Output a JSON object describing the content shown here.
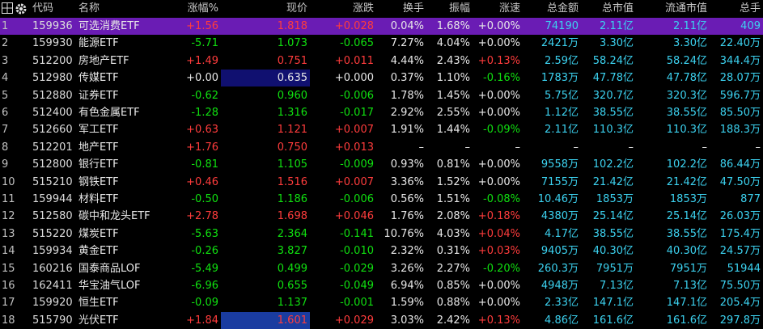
{
  "header": {
    "columns": [
      "代码",
      "名称",
      "涨幅%",
      "现价",
      "涨跌",
      "换手",
      "振幅",
      "涨速",
      "总金额",
      "总市值",
      "流通市值",
      "总手"
    ]
  },
  "table": {
    "rows": [
      [
        "1",
        "159936",
        "可选消费ETF",
        "+1.56",
        "1.818",
        "+0.028",
        "0.04%",
        "1.68%",
        "+0.00%",
        "74190",
        "2.11亿",
        "2.11亿",
        "409"
      ],
      [
        "2",
        "159930",
        "能源ETF",
        "-5.71",
        "1.073",
        "-0.065",
        "7.27%",
        "4.04%",
        "+0.00%",
        "2421万",
        "3.30亿",
        "3.30亿",
        "22.40万"
      ],
      [
        "3",
        "512200",
        "房地产ETF",
        "+1.49",
        "0.751",
        "+0.011",
        "4.44%",
        "2.43%",
        "+0.13%",
        "2.59亿",
        "58.24亿",
        "58.24亿",
        "344.4万"
      ],
      [
        "4",
        "512980",
        "传媒ETF",
        "+0.00",
        "0.635",
        "+0.000",
        "0.37%",
        "1.10%",
        "-0.16%",
        "1783万",
        "47.78亿",
        "47.78亿",
        "28.07万"
      ],
      [
        "5",
        "512880",
        "证券ETF",
        "-0.62",
        "0.960",
        "-0.006",
        "1.78%",
        "1.45%",
        "+0.00%",
        "5.75亿",
        "320.7亿",
        "320.3亿",
        "596.7万"
      ],
      [
        "6",
        "512400",
        "有色金属ETF",
        "-1.28",
        "1.316",
        "-0.017",
        "2.92%",
        "2.55%",
        "+0.00%",
        "1.12亿",
        "38.55亿",
        "38.55亿",
        "85.50万"
      ],
      [
        "7",
        "512660",
        "军工ETF",
        "+0.63",
        "1.121",
        "+0.007",
        "1.91%",
        "1.44%",
        "-0.09%",
        "2.11亿",
        "110.3亿",
        "110.3亿",
        "188.3万"
      ],
      [
        "8",
        "512201",
        "地产ETF",
        "+1.76",
        "0.750",
        "+0.013",
        "–",
        "–",
        "–",
        "–",
        "–",
        "–",
        "–"
      ],
      [
        "9",
        "512800",
        "银行ETF",
        "-0.81",
        "1.105",
        "-0.009",
        "0.93%",
        "0.81%",
        "+0.00%",
        "9558万",
        "102.2亿",
        "102.2亿",
        "86.44万"
      ],
      [
        "10",
        "515210",
        "钢铁ETF",
        "+0.46",
        "1.516",
        "+0.007",
        "3.36%",
        "1.52%",
        "+0.00%",
        "7155万",
        "21.42亿",
        "21.42亿",
        "47.50万"
      ],
      [
        "11",
        "159944",
        "材料ETF",
        "-0.50",
        "1.186",
        "-0.006",
        "0.56%",
        "1.51%",
        "-0.08%",
        "10.46万",
        "1853万",
        "1853万",
        "877"
      ],
      [
        "12",
        "512580",
        "碳中和龙头ETF",
        "+2.78",
        "1.698",
        "+0.046",
        "1.76%",
        "2.08%",
        "+0.18%",
        "4380万",
        "25.14亿",
        "25.14亿",
        "26.03万"
      ],
      [
        "13",
        "515220",
        "煤炭ETF",
        "-5.63",
        "2.364",
        "-0.141",
        "10.76%",
        "4.03%",
        "+0.04%",
        "4.17亿",
        "38.55亿",
        "38.55亿",
        "175.4万"
      ],
      [
        "14",
        "159934",
        "黄金ETF",
        "-0.26",
        "3.827",
        "-0.010",
        "2.32%",
        "0.31%",
        "+0.03%",
        "9405万",
        "40.30亿",
        "40.30亿",
        "24.57万"
      ],
      [
        "15",
        "160216",
        "国泰商品LOF",
        "-5.49",
        "0.499",
        "-0.029",
        "3.26%",
        "2.27%",
        "-0.20%",
        "260.3万",
        "7951万",
        "7951万",
        "51944"
      ],
      [
        "16",
        "162411",
        "华宝油气LOF",
        "-6.96",
        "0.655",
        "-0.049",
        "6.94%",
        "0.85%",
        "+0.00%",
        "4948万",
        "7.13亿",
        "7.13亿",
        "75.50万"
      ],
      [
        "17",
        "159920",
        "恒生ETF",
        "-0.09",
        "1.137",
        "-0.001",
        "1.59%",
        "0.88%",
        "+0.00%",
        "2.33亿",
        "147.1亿",
        "147.1亿",
        "205.4万"
      ],
      [
        "18",
        "515790",
        "光伏ETF",
        "+1.84",
        "1.601",
        "+0.029",
        "3.03%",
        "2.42%",
        "+0.13%",
        "4.86亿",
        "161.6亿",
        "161.6亿",
        "297.8万"
      ]
    ]
  }
}
